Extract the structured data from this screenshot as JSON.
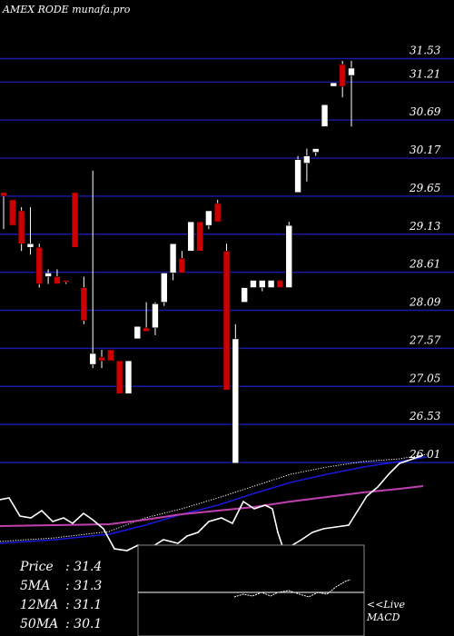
{
  "header": {
    "title": "AMEX  RODE munafa.pro"
  },
  "stats": [
    {
      "label": "Price",
      "value": ": 31.4"
    },
    {
      "label": "5MA",
      "value": ": 31.3"
    },
    {
      "label": "12MA",
      "value": ": 31.1"
    },
    {
      "label": "50MA",
      "value": ": 30.1"
    }
  ],
  "macd": {
    "line1": "<<Live",
    "line2": "MACD"
  },
  "colors": {
    "background": "#000000",
    "grid": "#1a1aa8",
    "bull": "#ffffff",
    "bear": "#cc0000",
    "ma_blue": "#1818d8",
    "ma_magenta": "#c040b0",
    "dotted": "#ffffff",
    "oscillator": "#ffffff",
    "macd_panel_border": "#888888"
  },
  "chart_data": {
    "type": "candlestick",
    "ylim": [
      25.6,
      31.8
    ],
    "yticks": [
      "31.53",
      "31.21",
      "30.69",
      "30.17",
      "29.65",
      "29.13",
      "28.61",
      "28.09",
      "27.57",
      "27.05",
      "26.53",
      "26.01"
    ],
    "candles": [
      {
        "o": 29.7,
        "h": 29.7,
        "l": 29.2,
        "c": 29.65
      },
      {
        "o": 29.6,
        "h": 29.6,
        "l": 29.25,
        "c": 29.25
      },
      {
        "o": 29.45,
        "h": 29.5,
        "l": 28.9,
        "c": 29.0
      },
      {
        "o": 28.95,
        "h": 29.5,
        "l": 28.85,
        "c": 29.0
      },
      {
        "o": 28.95,
        "h": 29.0,
        "l": 28.4,
        "c": 28.45
      },
      {
        "o": 28.55,
        "h": 28.65,
        "l": 28.45,
        "c": 28.6
      },
      {
        "o": 28.55,
        "h": 28.65,
        "l": 28.45,
        "c": 28.45
      },
      {
        "o": 28.5,
        "h": 28.5,
        "l": 28.45,
        "c": 28.48
      },
      {
        "o": 29.7,
        "h": 29.7,
        "l": 28.95,
        "c": 28.95
      },
      {
        "o": 28.4,
        "h": 28.55,
        "l": 27.9,
        "c": 27.95
      },
      {
        "o": 27.35,
        "h": 30.0,
        "l": 27.3,
        "c": 27.5
      },
      {
        "o": 27.45,
        "h": 27.55,
        "l": 27.3,
        "c": 27.4
      },
      {
        "o": 27.55,
        "h": 27.55,
        "l": 27.4,
        "c": 27.4
      },
      {
        "o": 27.4,
        "h": 27.4,
        "l": 26.95,
        "c": 26.95
      },
      {
        "o": 26.95,
        "h": 27.4,
        "l": 26.95,
        "c": 27.4
      },
      {
        "o": 27.7,
        "h": 27.87,
        "l": 27.7,
        "c": 27.87
      },
      {
        "o": 27.85,
        "h": 28.2,
        "l": 27.8,
        "c": 27.8
      },
      {
        "o": 27.85,
        "h": 28.2,
        "l": 27.75,
        "c": 28.18
      },
      {
        "o": 28.2,
        "h": 28.6,
        "l": 28.15,
        "c": 28.6
      },
      {
        "o": 28.6,
        "h": 29.0,
        "l": 28.5,
        "c": 29.0
      },
      {
        "o": 28.8,
        "h": 28.9,
        "l": 28.6,
        "c": 28.6
      },
      {
        "o": 28.9,
        "h": 29.3,
        "l": 28.9,
        "c": 29.3
      },
      {
        "o": 29.3,
        "h": 29.3,
        "l": 28.9,
        "c": 28.9
      },
      {
        "o": 29.25,
        "h": 29.45,
        "l": 29.2,
        "c": 29.45
      },
      {
        "o": 29.55,
        "h": 29.6,
        "l": 29.3,
        "c": 29.3
      },
      {
        "o": 28.9,
        "h": 29.0,
        "l": 27.0,
        "c": 27.0
      },
      {
        "o": 26.0,
        "h": 27.9,
        "l": 26.0,
        "c": 27.7
      },
      {
        "o": 28.2,
        "h": 28.4,
        "l": 28.2,
        "c": 28.4
      },
      {
        "o": 28.4,
        "h": 28.5,
        "l": 28.4,
        "c": 28.5
      },
      {
        "o": 28.4,
        "h": 28.5,
        "l": 28.35,
        "c": 28.5
      },
      {
        "o": 28.4,
        "h": 28.5,
        "l": 28.4,
        "c": 28.5
      },
      {
        "o": 28.5,
        "h": 28.5,
        "l": 28.4,
        "c": 28.4
      },
      {
        "o": 28.4,
        "h": 29.3,
        "l": 28.4,
        "c": 29.25
      },
      {
        "o": 29.7,
        "h": 30.2,
        "l": 29.7,
        "c": 30.15
      },
      {
        "o": 30.1,
        "h": 30.3,
        "l": 29.85,
        "c": 30.2
      },
      {
        "o": 30.25,
        "h": 30.3,
        "l": 30.2,
        "c": 30.3
      },
      {
        "o": 30.6,
        "h": 30.9,
        "l": 30.6,
        "c": 30.9
      },
      {
        "o": 31.15,
        "h": 31.2,
        "l": 31.15,
        "c": 31.2
      },
      {
        "o": 31.45,
        "h": 31.5,
        "l": 31.0,
        "c": 31.15
      },
      {
        "o": 31.3,
        "h": 31.5,
        "l": 30.6,
        "c": 31.4
      }
    ]
  }
}
